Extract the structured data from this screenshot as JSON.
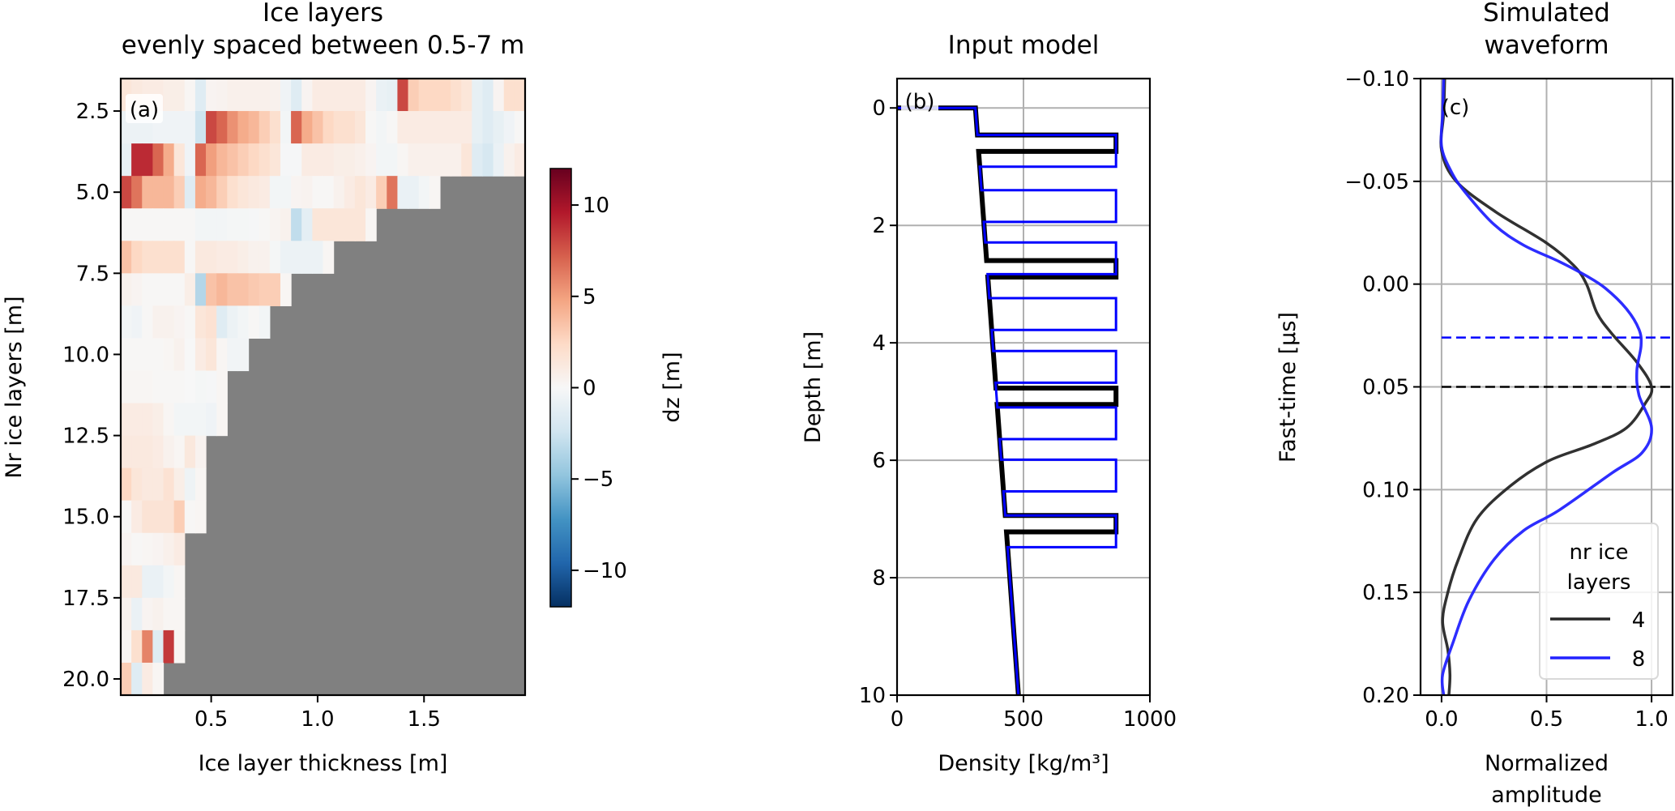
{
  "chart_data": [
    {
      "type": "heatmap",
      "panel_label": "(a)",
      "title": [
        "Ice layers",
        "evenly spaced between 0.5-7 m"
      ],
      "xlabel": "Ice layer thickness [m]",
      "ylabel": "Nr ice layers [m]",
      "xlim": [
        0.075,
        1.975
      ],
      "ylim": [
        20.5,
        1.5
      ],
      "x_start": 0.1,
      "x_step": 0.05,
      "xticks": [
        {
          "v": 0.5,
          "label": "0.5"
        },
        {
          "v": 1.0,
          "label": "1.0"
        },
        {
          "v": 1.5,
          "label": "1.5"
        }
      ],
      "yticks": [
        {
          "v": 2.5,
          "label": "2.5"
        },
        {
          "v": 5,
          "label": "5.0"
        },
        {
          "v": 7.5,
          "label": "7.5"
        },
        {
          "v": 10,
          "label": "10.0"
        },
        {
          "v": 12.5,
          "label": "12.5"
        },
        {
          "v": 15,
          "label": "15.0"
        },
        {
          "v": 17.5,
          "label": "17.5"
        },
        {
          "v": 20,
          "label": "20.0"
        }
      ],
      "masked_color": "#808080",
      "rows": [
        {
          "n": 2,
          "values": [
            1.5,
            1.2,
            1,
            1,
            0.8,
            0.8,
            0.2,
            -1.5,
            0.3,
            0.4,
            0.6,
            0.6,
            0.6,
            0.6,
            0.5,
            -0.5,
            -1.5,
            0.3,
            1,
            1,
            1,
            1,
            1,
            0.3,
            -0.8,
            -1,
            8,
            3,
            2.5,
            2.5,
            2.5,
            2,
            1.5,
            -1,
            -1.5,
            0.3,
            2,
            2
          ]
        },
        {
          "n": 3,
          "values": [
            -0.7,
            -0.7,
            -0.7,
            -0.5,
            -0.5,
            -0.5,
            -0.5,
            -2.5,
            8,
            7,
            5.5,
            4.5,
            4,
            3,
            2,
            -0.3,
            7,
            4.5,
            3.5,
            2.5,
            2,
            2,
            1.5,
            0.1,
            -0.3,
            0.1,
            1,
            1,
            1,
            1,
            1,
            1,
            1,
            -1,
            -1.5,
            -1,
            -0.5,
            0.1
          ]
        },
        {
          "n": 4,
          "values": [
            -1,
            9,
            9,
            7,
            4.5,
            1.5,
            -0.5,
            7,
            5,
            4,
            3.5,
            3,
            2.5,
            2,
            1.5,
            -0.1,
            -0.1,
            1,
            1,
            1,
            0.8,
            0.8,
            0.6,
            0.3,
            -0.3,
            -0.3,
            0.2,
            0.6,
            0.6,
            0.6,
            0.6,
            0.6,
            1.5,
            -1.5,
            -2,
            -0.8,
            0.5,
            1
          ]
        },
        {
          "n": 5,
          "values": [
            8,
            6.5,
            4,
            4,
            4,
            3,
            -1.5,
            4.5,
            4,
            3,
            2,
            1.5,
            1.2,
            1,
            -0.3,
            -0.3,
            0.3,
            0.4,
            0.1,
            0.1,
            0.5,
            1,
            1.5,
            1,
            3,
            6.5,
            -0.8,
            -0.8,
            -0.3,
            0.2
          ]
        },
        {
          "n": 6,
          "values": [
            0.1,
            0.1,
            0.1,
            0.1,
            0.1,
            0.1,
            0.1,
            -0.3,
            -0.3,
            -0.3,
            -0.2,
            -0.2,
            -0.1,
            0.1,
            0.3,
            0.5,
            -3,
            -1.2,
            1.5,
            1.5,
            1.5,
            1.5,
            1.5,
            0.2
          ]
        },
        {
          "n": 7,
          "values": [
            3.5,
            2.5,
            2,
            2,
            2,
            2,
            0.1,
            1.2,
            1.2,
            1,
            1,
            0.8,
            0.5,
            0.5,
            -0.2,
            -0.7,
            -0.7,
            -0.7,
            -0.7,
            0.2
          ]
        },
        {
          "n": 8,
          "values": [
            0.5,
            0.3,
            0.1,
            0.1,
            0.1,
            0.1,
            0.8,
            -3.5,
            3.5,
            4,
            3.5,
            3.5,
            3.2,
            3,
            3,
            0.2
          ]
        },
        {
          "n": 9,
          "values": [
            -0.3,
            -0.5,
            0.1,
            0.5,
            0.5,
            0.3,
            0.1,
            1.5,
            1.8,
            -1.5,
            -0.7,
            -0.3,
            0.1,
            -0.3
          ]
        },
        {
          "n": 10,
          "values": [
            0.1,
            0.1,
            0.1,
            0.1,
            0.2,
            0.5,
            0,
            1,
            1.5,
            0.2,
            -0.4,
            -0.4
          ]
        },
        {
          "n": 11,
          "values": [
            0.2,
            0.2,
            0.2,
            0.1,
            0.1,
            0.1,
            0,
            -0.2,
            -0.1,
            0.2
          ]
        },
        {
          "n": 12,
          "values": [
            1,
            1,
            1,
            0.8,
            0.2,
            -0.3,
            -0.3,
            -0.3,
            -0.5,
            0.2
          ]
        },
        {
          "n": 13,
          "values": [
            1.2,
            1.2,
            1.2,
            1,
            0.5,
            0.2,
            1.3,
            0.4
          ]
        },
        {
          "n": 14,
          "values": [
            2.5,
            1.5,
            1.2,
            1.2,
            1.8,
            0.8,
            -0.6,
            0.2
          ]
        },
        {
          "n": 15,
          "values": [
            0.1,
            1,
            1.7,
            1.7,
            1.7,
            3,
            0.1,
            0.2
          ]
        },
        {
          "n": 16,
          "values": [
            0.3,
            0.1,
            0.2,
            0.3,
            0.6,
            1
          ]
        },
        {
          "n": 17,
          "values": [
            1.2,
            1.2,
            -0.8,
            -0.8,
            -0.3,
            0.2
          ]
        },
        {
          "n": 18,
          "values": [
            0.5,
            -0.8,
            0.3,
            0.5,
            0.2,
            0.2
          ]
        },
        {
          "n": 19,
          "values": [
            0.2,
            2,
            6,
            -1.5,
            8.5,
            0.2
          ]
        },
        {
          "n": 20,
          "values": [
            3,
            -1.5,
            1,
            0.2
          ]
        }
      ],
      "colorbar": {
        "label": "dz [m]",
        "colormap": "RdBu_r",
        "vmin": -12,
        "vmax": 12,
        "stops": [
          "#053061",
          "#2166ac",
          "#4393c3",
          "#92c5de",
          "#d1e5f0",
          "#f7f7f7",
          "#fddbc7",
          "#f4a582",
          "#d6604d",
          "#b2182b",
          "#67001f"
        ],
        "ticks": [
          {
            "v": 10,
            "label": "10"
          },
          {
            "v": 5,
            "label": "5"
          },
          {
            "v": 0,
            "label": "0"
          },
          {
            "v": -5,
            "label": "−5"
          },
          {
            "v": -10,
            "label": "−10"
          }
        ]
      }
    },
    {
      "type": "line",
      "panel_label": "(b)",
      "title": "Input model",
      "xlabel": "Density [kg/m³]",
      "ylabel": "Depth [m]",
      "xlim": [
        0,
        1000
      ],
      "ylim": [
        10,
        -0.5
      ],
      "grid": true,
      "xticks": [
        {
          "v": 0,
          "label": "0"
        },
        {
          "v": 500,
          "label": "500"
        },
        {
          "v": 1000,
          "label": "1000"
        }
      ],
      "yticks": [
        {
          "v": 0,
          "label": "0"
        },
        {
          "v": 2,
          "label": "2"
        },
        {
          "v": 4,
          "label": "4"
        },
        {
          "v": 6,
          "label": "6"
        },
        {
          "v": 8,
          "label": "8"
        },
        {
          "v": 10,
          "label": "10"
        }
      ],
      "firn_density_surface": 310,
      "firn_density_gradient_per_m": 17,
      "ice_density": 866,
      "series": [
        {
          "name": "4",
          "color": "#000000",
          "layer_tops": [
            0.46,
            2.6,
            4.77,
            6.94
          ],
          "layer_thickness": 0.28
        },
        {
          "name": "8",
          "color": "#0000ff",
          "layer_tops": [
            0.46,
            1.4,
            2.29,
            3.24,
            4.14,
            5.1,
            5.99,
            6.94
          ],
          "layer_thickness": 0.54
        }
      ]
    },
    {
      "type": "line",
      "panel_label": "(c)",
      "title": [
        "Simulated",
        "waveform"
      ],
      "xlabel": [
        "Normalized",
        "amplitude"
      ],
      "ylabel": "Fast-time [µs]",
      "xlim": [
        -0.1,
        1.1
      ],
      "ylim": [
        0.2,
        -0.1
      ],
      "grid": true,
      "xticks": [
        {
          "v": 0,
          "label": "0.0"
        },
        {
          "v": 0.5,
          "label": "0.5"
        },
        {
          "v": 1.0,
          "label": "1.0"
        }
      ],
      "yticks": [
        {
          "v": -0.1,
          "label": "−0.10"
        },
        {
          "v": -0.05,
          "label": "−0.05"
        },
        {
          "v": 0,
          "label": "0.00"
        },
        {
          "v": 0.05,
          "label": "0.05"
        },
        {
          "v": 0.1,
          "label": "0.10"
        },
        {
          "v": 0.15,
          "label": "0.15"
        },
        {
          "v": 0.2,
          "label": "0.20"
        }
      ],
      "legend": {
        "title": [
          "nr ice",
          "layers"
        ],
        "placement": "lower-right"
      },
      "series": [
        {
          "name": "4",
          "color": "#262626",
          "t": [
            -0.1,
            -0.083,
            -0.065,
            -0.05,
            -0.035,
            -0.02,
            -0.009,
            0.0,
            0.014,
            0.024,
            0.038,
            0.05,
            0.058,
            0.07,
            0.078,
            0.086,
            0.098,
            0.114,
            0.134,
            0.15,
            0.164,
            0.178,
            0.19,
            0.2
          ],
          "amp": [
            0.015,
            0.01,
            0.0,
            0.07,
            0.26,
            0.5,
            0.63,
            0.69,
            0.74,
            0.81,
            0.93,
            1.0,
            0.97,
            0.88,
            0.72,
            0.51,
            0.33,
            0.17,
            0.08,
            0.03,
            0.005,
            0.03,
            0.04,
            0.035
          ],
          "peak_marker_t": 0.05
        },
        {
          "name": "8",
          "color": "#2222ff",
          "t": [
            -0.1,
            -0.083,
            -0.067,
            -0.055,
            -0.045,
            -0.029,
            -0.019,
            -0.011,
            -0.004,
            0.002,
            0.012,
            0.022,
            0.03,
            0.042,
            0.054,
            0.07,
            0.082,
            0.092,
            0.11,
            0.12,
            0.134,
            0.154,
            0.174,
            0.19,
            0.2
          ],
          "amp": [
            0.01,
            0.005,
            0.0,
            0.045,
            0.11,
            0.25,
            0.39,
            0.56,
            0.69,
            0.78,
            0.88,
            0.94,
            0.95,
            0.93,
            0.94,
            1.0,
            0.955,
            0.81,
            0.56,
            0.39,
            0.25,
            0.13,
            0.056,
            0.005,
            0.01
          ],
          "peak_marker_t": 0.026
        }
      ]
    }
  ]
}
